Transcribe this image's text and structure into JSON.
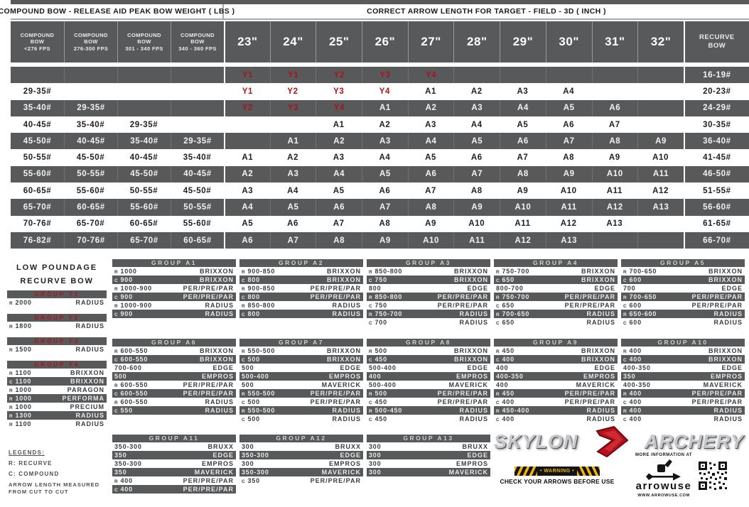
{
  "titles": {
    "left": "COMPOUND BOW - RELEASE AID PEAK BOW WEIGHT ( LBS )",
    "right": "CORRECT ARROW LENGTH FOR TARGET - FIELD - 3D ( INCH )"
  },
  "header": {
    "compound_cols": [
      [
        "COMPOUND",
        "BOW",
        "<276 FPS"
      ],
      [
        "COMPOUND",
        "BOW",
        "276-300 FPS"
      ],
      [
        "COMPOUND",
        "BOW",
        "301 - 340 FPS"
      ],
      [
        "COMPOUND",
        "BOW",
        "340 - 360 FPS"
      ]
    ],
    "arrow_cols": [
      "23\"",
      "24\"",
      "25\"",
      "26\"",
      "27\"",
      "28\"",
      "29\"",
      "30\"",
      "31\"",
      "32\""
    ],
    "recurve": [
      "RECURVE",
      "BOW"
    ]
  },
  "table": {
    "rows": [
      {
        "compound": [
          "",
          "",
          "",
          ""
        ],
        "arrows": [
          "Y1",
          "Y1",
          "Y2",
          "Y3",
          "Y4",
          "",
          "",
          "",
          "",
          ""
        ],
        "recurve": "16-19#"
      },
      {
        "compound": [
          "29-35#",
          "",
          "",
          ""
        ],
        "arrows": [
          "Y1",
          "Y2",
          "Y3",
          "Y4",
          "A1",
          "A2",
          "A3",
          "A4",
          "",
          ""
        ],
        "recurve": "20-23#"
      },
      {
        "compound": [
          "35-40#",
          "29-35#",
          "",
          ""
        ],
        "arrows": [
          "Y2",
          "Y3",
          "Y4",
          "A1",
          "A2",
          "A3",
          "A4",
          "A5",
          "A6",
          ""
        ],
        "recurve": "24-29#"
      },
      {
        "compound": [
          "40-45#",
          "35-40#",
          "29-35#",
          ""
        ],
        "arrows": [
          "",
          "",
          "A1",
          "A2",
          "A3",
          "A4",
          "A5",
          "A6",
          "A7",
          ""
        ],
        "recurve": "30-35#"
      },
      {
        "compound": [
          "45-50#",
          "40-45#",
          "35-40#",
          "29-35#"
        ],
        "arrows": [
          "",
          "A1",
          "A2",
          "A3",
          "A4",
          "A5",
          "A6",
          "A7",
          "A8",
          "A9"
        ],
        "recurve": "36-40#"
      },
      {
        "compound": [
          "50-55#",
          "45-50#",
          "40-45#",
          "35-40#"
        ],
        "arrows": [
          "A1",
          "A2",
          "A3",
          "A4",
          "A5",
          "A6",
          "A7",
          "A8",
          "A9",
          "A10"
        ],
        "recurve": "41-45#"
      },
      {
        "compound": [
          "55-60#",
          "50-55#",
          "45-50#",
          "40-45#"
        ],
        "arrows": [
          "A2",
          "A3",
          "A4",
          "A5",
          "A6",
          "A7",
          "A8",
          "A9",
          "A10",
          "A11"
        ],
        "recurve": "46-50#"
      },
      {
        "compound": [
          "60-65#",
          "55-60#",
          "50-55#",
          "45-50#"
        ],
        "arrows": [
          "A3",
          "A4",
          "A5",
          "A6",
          "A7",
          "A8",
          "A9",
          "A10",
          "A11",
          "A12"
        ],
        "recurve": "51-55#"
      },
      {
        "compound": [
          "65-70#",
          "60-65#",
          "55-60#",
          "50-55#"
        ],
        "arrows": [
          "A4",
          "A5",
          "A6",
          "A7",
          "A8",
          "A9",
          "A10",
          "A11",
          "A12",
          "A13"
        ],
        "recurve": "56-60#"
      },
      {
        "compound": [
          "70-76#",
          "65-70#",
          "60-65#",
          "55-60#"
        ],
        "arrows": [
          "A5",
          "A6",
          "A7",
          "A8",
          "A9",
          "A10",
          "A11",
          "A12",
          "A13",
          ""
        ],
        "recurve": "61-65#"
      },
      {
        "compound": [
          "76-82#",
          "70-76#",
          "65-70#",
          "60-65#"
        ],
        "arrows": [
          "A6",
          "A7",
          "A8",
          "A9",
          "A10",
          "A11",
          "A12",
          "A13",
          "",
          ""
        ],
        "recurve": "66-70#"
      }
    ]
  },
  "low_poundage": {
    "line1": "LOW POUNDAGE",
    "line2": "RECURVE BOW",
    "groups": [
      {
        "name": "GROUP Y1",
        "rows": [
          [
            "R",
            "2000",
            "RADIUS"
          ]
        ]
      },
      {
        "name": "GROUP Y2",
        "rows": [
          [
            "R",
            "1800",
            "RADIUS"
          ]
        ]
      },
      {
        "name": "GROUP Y3",
        "rows": [
          [
            "R",
            "1500",
            "RADIUS"
          ]
        ]
      },
      {
        "name": "GROUP Y4",
        "rows": [
          [
            "R",
            "1100",
            "BRIXXON"
          ],
          [
            "C",
            "1100",
            "BRIXXON"
          ],
          [
            "R",
            "1000",
            "PARAGON"
          ],
          [
            "R",
            "1000",
            "PERFORMA"
          ],
          [
            "R",
            "1000",
            "PRECIUM"
          ],
          [
            "R",
            "1300",
            "RADIUS"
          ],
          [
            "R",
            "1100",
            "RADIUS"
          ]
        ]
      }
    ]
  },
  "groups": [
    {
      "name": "GROUP A1",
      "rows": [
        [
          "R",
          "1000",
          "BRIXXON"
        ],
        [
          "C",
          "900",
          "BRIXXON"
        ],
        [
          "R",
          "1000-900",
          "PER/PRE/PAR"
        ],
        [
          "C",
          "900",
          "PER/PRE/PAR"
        ],
        [
          "R",
          "1000-900",
          "RADIUS"
        ],
        [
          "C",
          "900",
          "RADIUS"
        ]
      ]
    },
    {
      "name": "GROUP A2",
      "rows": [
        [
          "R",
          "900-850",
          "BRIXXON"
        ],
        [
          "C",
          "800",
          "BRIXXON"
        ],
        [
          "R",
          "900-850",
          "PER/PRE/PAR"
        ],
        [
          "C",
          "800",
          "PER/PRE/PAR"
        ],
        [
          "R",
          "850-800",
          "RADIUS"
        ],
        [
          "C",
          "800",
          "RADIUS"
        ]
      ]
    },
    {
      "name": "GROUP A3",
      "rows": [
        [
          "R",
          "850-800",
          "BRIXXON"
        ],
        [
          "C",
          "750",
          "BRIXXON"
        ],
        [
          "",
          "800",
          "EDGE"
        ],
        [
          "R",
          "850-800",
          "PER/PRE/PAR"
        ],
        [
          "C",
          "750",
          "PER/PRE/PAR"
        ],
        [
          "R",
          "750-700",
          "RADIUS"
        ],
        [
          "C",
          "700",
          "RADIUS"
        ]
      ]
    },
    {
      "name": "GROUP A4",
      "rows": [
        [
          "R",
          "750-700",
          "BRIXXON"
        ],
        [
          "C",
          "650",
          "BRIXXON"
        ],
        [
          "",
          "800-700",
          "EDGE"
        ],
        [
          "R",
          "750-700",
          "PER/PRE/PAR"
        ],
        [
          "C",
          "650",
          "PER/PRE/PAR"
        ],
        [
          "R",
          "700-650",
          "RADIUS"
        ],
        [
          "C",
          "650",
          "RADIUS"
        ]
      ]
    },
    {
      "name": "GROUP A5",
      "rows": [
        [
          "R",
          "700-650",
          "BRIXXON"
        ],
        [
          "C",
          "600",
          "BRIXXON"
        ],
        [
          "",
          "700",
          "EDGE"
        ],
        [
          "R",
          "700-650",
          "PER/PRE/PAR"
        ],
        [
          "C",
          "600",
          "PER/PRE/PAR"
        ],
        [
          "R",
          "650-600",
          "RADIUS"
        ],
        [
          "C",
          "600",
          "RADIUS"
        ]
      ]
    },
    {
      "name": "GROUP A6",
      "rows": [
        [
          "R",
          "600-550",
          "BRIXXON"
        ],
        [
          "C",
          "600-550",
          "BRIXXON"
        ],
        [
          "",
          "700-600",
          "EDGE"
        ],
        [
          "",
          "500",
          "EMPROS"
        ],
        [
          "R",
          "600-550",
          "PER/PRE/PAR"
        ],
        [
          "C",
          "600-550",
          "PER/PRE/PAR"
        ],
        [
          "R",
          "600-550",
          "RADIUS"
        ],
        [
          "C",
          "550",
          "RADIUS"
        ]
      ]
    },
    {
      "name": "GROUP A7",
      "rows": [
        [
          "R",
          "550-500",
          "BRIXXON"
        ],
        [
          "C",
          "500",
          "BRIXXON"
        ],
        [
          "",
          "500",
          "EDGE"
        ],
        [
          "",
          "500-400",
          "EMPROS"
        ],
        [
          "",
          "500",
          "MAVERICK"
        ],
        [
          "R",
          "550-500",
          "PER/PRE/PAR"
        ],
        [
          "C",
          "500",
          "PER/PRE/PAR"
        ],
        [
          "R",
          "550-500",
          "RADIUS"
        ],
        [
          "C",
          "500",
          "RADIUS"
        ]
      ]
    },
    {
      "name": "GROUP A8",
      "rows": [
        [
          "R",
          "500",
          "BRIXXON"
        ],
        [
          "C",
          "450",
          "BRIXXON"
        ],
        [
          "",
          "500-400",
          "EDGE"
        ],
        [
          "",
          "400",
          "EMPROS"
        ],
        [
          "",
          "500-400",
          "MAVERICK"
        ],
        [
          "R",
          "500",
          "PER/PRE/PAR"
        ],
        [
          "C",
          "450",
          "PER/PRE/PAR"
        ],
        [
          "R",
          "500-450",
          "RADIUS"
        ],
        [
          "C",
          "450",
          "RADIUS"
        ]
      ]
    },
    {
      "name": "GROUP A9",
      "rows": [
        [
          "R",
          "450",
          "BRIXXON"
        ],
        [
          "C",
          "400",
          "BRIXXON"
        ],
        [
          "",
          "400",
          "EDGE"
        ],
        [
          "",
          "400-350",
          "EMPROS"
        ],
        [
          "",
          "400",
          "MAVERICK"
        ],
        [
          "R",
          "450",
          "PER/PRE/PAR"
        ],
        [
          "C",
          "400",
          "PER/PRE/PAR"
        ],
        [
          "R",
          "450-400",
          "RADIUS"
        ],
        [
          "C",
          "400",
          "RADIUS"
        ]
      ]
    },
    {
      "name": "GROUP A10",
      "rows": [
        [
          "R",
          "400",
          "BRIXXON"
        ],
        [
          "C",
          "400",
          "BRIXXON"
        ],
        [
          "",
          "400-350",
          "EDGE"
        ],
        [
          "",
          "350",
          "EMPROS"
        ],
        [
          "",
          "400-350",
          "MAVERICK"
        ],
        [
          "R",
          "400",
          "PER/PRE/PAR"
        ],
        [
          "C",
          "400",
          "PER/PRE/PAR"
        ],
        [
          "R",
          "400",
          "RADIUS"
        ],
        [
          "C",
          "400",
          "RADIUS"
        ]
      ]
    },
    {
      "name": "GROUP A11",
      "rows": [
        [
          "",
          "350-300",
          "BRUXX"
        ],
        [
          "",
          "350",
          "EDGE"
        ],
        [
          "",
          "350-300",
          "EMPROS"
        ],
        [
          "",
          "350",
          "MAVERICK"
        ],
        [
          "R",
          "400",
          "PER/PRE/PAR"
        ],
        [
          "C",
          "400",
          "PER/PRE/PAR"
        ]
      ]
    },
    {
      "name": "GROUP A12",
      "rows": [
        [
          "",
          "300",
          "BRUXX"
        ],
        [
          "",
          "350-300",
          "EDGE"
        ],
        [
          "",
          "300",
          "EMPROS"
        ],
        [
          "",
          "350-300",
          "MAVERICK"
        ],
        [
          "C",
          "350",
          "PER/PRE/PAR"
        ]
      ]
    },
    {
      "name": "GROUP A13",
      "rows": [
        [
          "",
          "300",
          "BRUXX"
        ],
        [
          "",
          "300",
          "EDGE"
        ],
        [
          "",
          "300",
          "EMPROS"
        ],
        [
          "",
          "300",
          "MAVERICK"
        ]
      ]
    }
  ],
  "legends": {
    "title": "LEGENDS:",
    "r_line": "R: RECURVE",
    "c_line": "C: COMPOUND",
    "note1": "ARROW LENGTH MEASURED",
    "note2": "FROM CUT TO CUT"
  },
  "footer": {
    "brand1": "SKYLON",
    "brand2": "ARCHERY",
    "warning": "• WARNING •",
    "warning_sub": "CHECK YOUR ARROWS BEFORE USE",
    "more_info": "MORE INFORMATION AT",
    "arrowuse": "arrowuse",
    "arrowuse_url": "WWW.ARROWUSE.COM"
  },
  "colors": {
    "dark_gray": "#58595b",
    "red": "#b01218",
    "warning_yellow": "#f2b30d"
  }
}
